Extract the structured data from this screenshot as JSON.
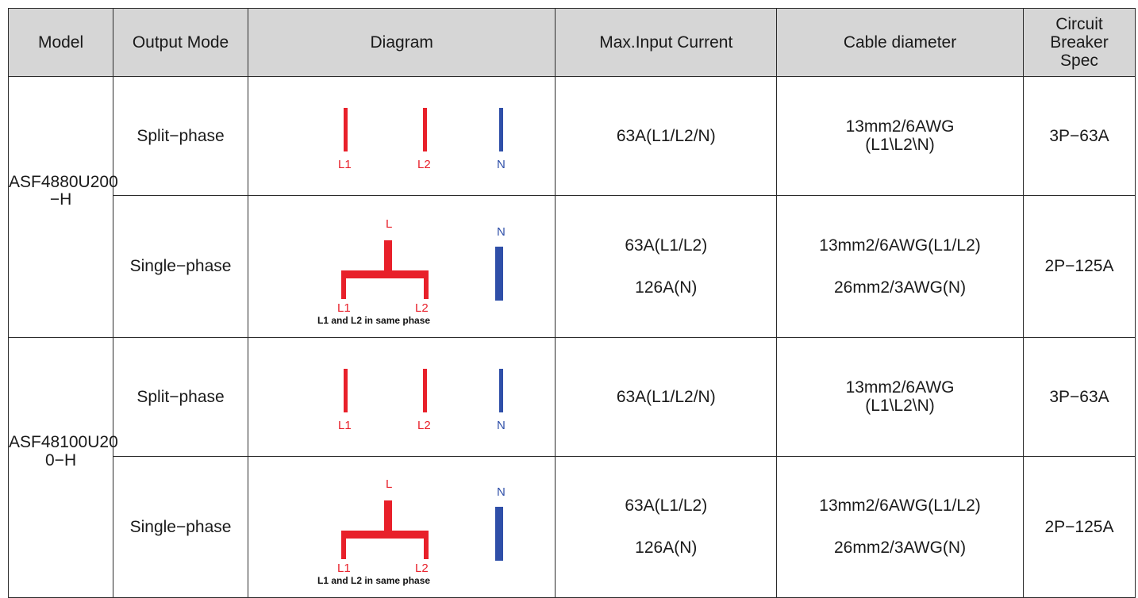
{
  "colors": {
    "header_bg": "#d6d6d6",
    "line": "#e8202a",
    "neutral": "#2f4fa8",
    "border": "#2b2b2b"
  },
  "headers": {
    "model": "Model",
    "output_mode": "Output Mode",
    "diagram": "Diagram",
    "max_input_current": "Max.Input Current",
    "cable_diameter": "Cable diameter",
    "breaker": [
      "Circuit",
      "Breaker",
      "Spec"
    ]
  },
  "diagram_labels": {
    "l1": "L1",
    "l2": "L2",
    "n": "N",
    "l": "L",
    "note": "L1 and L2 in same phase"
  },
  "models": [
    {
      "name_lines": [
        "ASF4880U200",
        "−H"
      ],
      "rows": [
        {
          "mode": "Split−phase",
          "diagram_type": "split",
          "current": [
            "63A(L1/L2/N)"
          ],
          "cable": [
            "13mm2/6AWG",
            "(L1\\L2\\N)"
          ],
          "cable_style": "wrap",
          "breaker": "3P−63A"
        },
        {
          "mode": "Single−phase",
          "diagram_type": "single",
          "current": [
            "63A(L1/L2)",
            "126A(N)"
          ],
          "cable": [
            "13mm2/6AWG(L1/L2)",
            "26mm2/3AWG(N)"
          ],
          "cable_style": "stack",
          "breaker": "2P−125A"
        }
      ]
    },
    {
      "name_lines": [
        "ASF48100U20",
        "0−H"
      ],
      "rows": [
        {
          "mode": "Split−phase",
          "diagram_type": "split",
          "current": [
            "63A(L1/L2/N)"
          ],
          "cable": [
            "13mm2/6AWG",
            "(L1\\L2\\N)"
          ],
          "cable_style": "wrap",
          "breaker": "3P−63A"
        },
        {
          "mode": "Single−phase",
          "diagram_type": "single",
          "current": [
            "63A(L1/L2)",
            "126A(N)"
          ],
          "cable": [
            "13mm2/6AWG(L1/L2)",
            "26mm2/3AWG(N)"
          ],
          "cable_style": "stack",
          "breaker": "2P−125A"
        }
      ]
    }
  ]
}
